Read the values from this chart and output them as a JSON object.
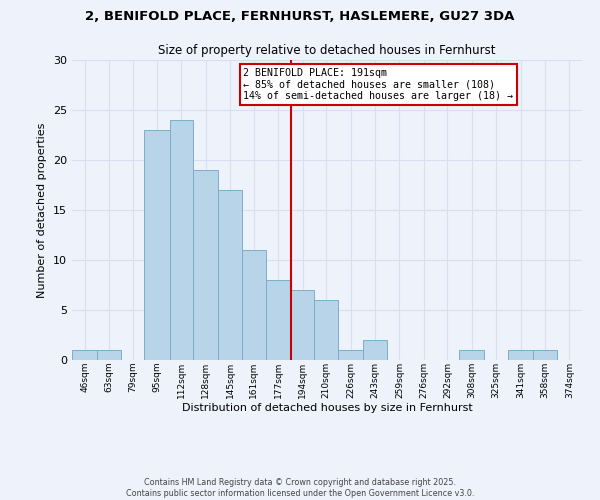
{
  "title1": "2, BENIFOLD PLACE, FERNHURST, HASLEMERE, GU27 3DA",
  "title2": "Size of property relative to detached houses in Fernhurst",
  "xlabel": "Distribution of detached houses by size in Fernhurst",
  "ylabel": "Number of detached properties",
  "bin_labels": [
    "46sqm",
    "63sqm",
    "79sqm",
    "95sqm",
    "112sqm",
    "128sqm",
    "145sqm",
    "161sqm",
    "177sqm",
    "194sqm",
    "210sqm",
    "226sqm",
    "243sqm",
    "259sqm",
    "276sqm",
    "292sqm",
    "308sqm",
    "325sqm",
    "341sqm",
    "358sqm",
    "374sqm"
  ],
  "bin_edges": [
    46,
    63,
    79,
    95,
    112,
    128,
    145,
    161,
    177,
    194,
    210,
    226,
    243,
    259,
    276,
    292,
    308,
    325,
    341,
    358,
    374,
    391
  ],
  "bar_counts": [
    1,
    1,
    0,
    23,
    24,
    19,
    17,
    11,
    8,
    7,
    6,
    1,
    2,
    0,
    0,
    0,
    1,
    0,
    1,
    1,
    0
  ],
  "bar_color": "#b8d4e8",
  "bar_edge_color": "#7aaec8",
  "vline_x": 194,
  "vline_color": "#cc0000",
  "annotation_text": "2 BENIFOLD PLACE: 191sqm\n← 85% of detached houses are smaller (108)\n14% of semi-detached houses are larger (18) →",
  "annotation_box_color": "white",
  "annotation_box_edge": "#cc0000",
  "ylim": [
    0,
    30
  ],
  "yticks": [
    0,
    5,
    10,
    15,
    20,
    25,
    30
  ],
  "footer1": "Contains HM Land Registry data © Crown copyright and database right 2025.",
  "footer2": "Contains public sector information licensed under the Open Government Licence v3.0.",
  "bg_color": "#eef2fa",
  "grid_color": "#d8dff0"
}
